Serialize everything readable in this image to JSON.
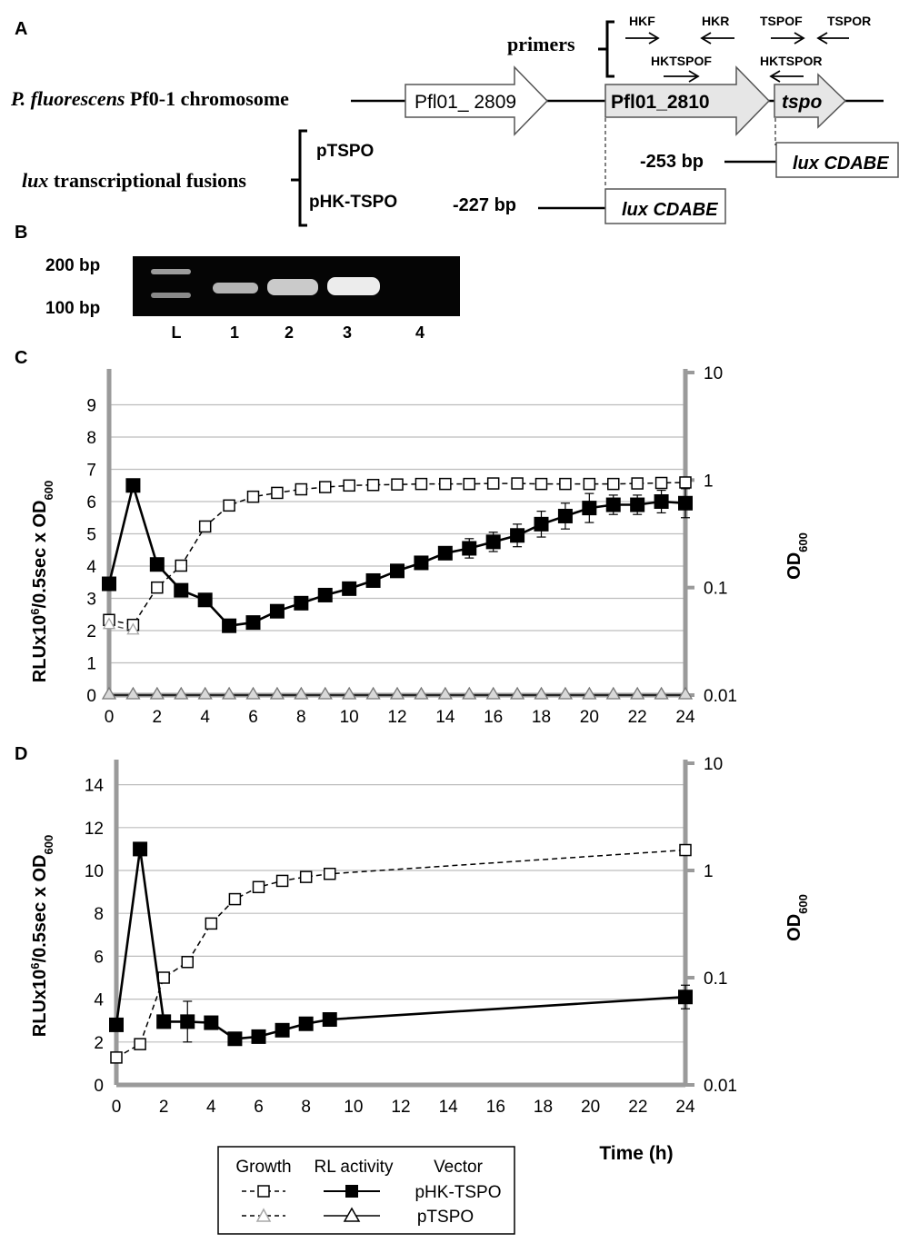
{
  "panel_a": {
    "label": "A",
    "primers_label": "primers",
    "primer_names": [
      "HKF",
      "HKR",
      "TSPOF",
      "TSPOR",
      "HKTSPOF",
      "HKTSPOR"
    ],
    "chromosome_species": "P. fluorescens",
    "chromosome_suffix": " Pf0-1 chromosome",
    "genes": [
      "Pfl01_ 2809",
      "Pfl01_2810",
      "tspo"
    ],
    "fusion_label_italic": "lux",
    "fusion_label_rest": " transcriptional fusions",
    "constructs": [
      "pTSPO",
      "pHK-TSPO"
    ],
    "distances": [
      "-253 bp",
      "-227 bp"
    ],
    "reporter": "lux CDABE"
  },
  "panel_b": {
    "label": "B",
    "ladder_marks": [
      "200 bp",
      "100 bp"
    ],
    "lanes": [
      "L",
      "1",
      "2",
      "3",
      "4"
    ]
  },
  "chart_data": [
    {
      "panel": "C",
      "type": "line",
      "xlabel": "",
      "ylabel_left": "RLUx10^6/0.5sec x OD600",
      "ylabel_right": "OD600",
      "x_ticks": [
        0,
        2,
        4,
        6,
        8,
        10,
        12,
        14,
        16,
        18,
        20,
        22,
        24
      ],
      "ylim_left": [
        0,
        10
      ],
      "y_ticks_left": [
        0,
        1,
        2,
        3,
        4,
        5,
        6,
        7,
        8,
        9
      ],
      "y_ticks_right": [
        "10",
        "1",
        "0.1",
        "0.01"
      ],
      "ylim_right_log": [
        0.01,
        10
      ],
      "series": [
        {
          "name": "Growth pHK-TSPO",
          "axis": "right",
          "style": "dashed-open-square",
          "x": [
            0,
            1,
            2,
            3,
            4,
            5,
            6,
            7,
            8,
            9,
            10,
            11,
            12,
            13,
            14,
            15,
            16,
            17,
            18,
            19,
            20,
            21,
            22,
            23,
            24
          ],
          "values": [
            0.05,
            0.045,
            0.1,
            0.16,
            0.37,
            0.58,
            0.7,
            0.76,
            0.82,
            0.86,
            0.89,
            0.9,
            0.91,
            0.92,
            0.92,
            0.92,
            0.93,
            0.93,
            0.92,
            0.92,
            0.92,
            0.92,
            0.93,
            0.94,
            0.95
          ]
        },
        {
          "name": "Growth pTSPO",
          "axis": "right",
          "style": "dashed-gray-triangle",
          "x": [
            0,
            1
          ],
          "values": [
            0.045,
            0.04
          ]
        },
        {
          "name": "RL activity pHK-TSPO",
          "axis": "left",
          "style": "solid-filled-square",
          "x": [
            0,
            1,
            2,
            3,
            4,
            5,
            6,
            7,
            8,
            9,
            10,
            11,
            12,
            13,
            14,
            15,
            16,
            17,
            18,
            19,
            20,
            21,
            22,
            23,
            24
          ],
          "values": [
            3.45,
            6.5,
            4.05,
            3.25,
            2.95,
            2.15,
            2.25,
            2.6,
            2.85,
            3.1,
            3.3,
            3.55,
            3.85,
            4.1,
            4.4,
            4.55,
            4.75,
            4.95,
            5.3,
            5.55,
            5.8,
            5.9,
            5.9,
            6.0,
            5.95
          ],
          "errors": [
            0,
            0,
            0,
            0,
            0,
            0,
            0,
            0.15,
            0.2,
            0.15,
            0.15,
            0.15,
            0.15,
            0.15,
            0.2,
            0.3,
            0.3,
            0.35,
            0.4,
            0.4,
            0.45,
            0.3,
            0.3,
            0.35,
            0.45
          ]
        },
        {
          "name": "RL activity pTSPO",
          "axis": "left",
          "style": "solid-open-triangle",
          "x": [
            0,
            1,
            2,
            3,
            4,
            5,
            6,
            7,
            8,
            9,
            10,
            11,
            12,
            13,
            14,
            15,
            16,
            17,
            18,
            19,
            20,
            21,
            22,
            23,
            24
          ],
          "values": [
            0,
            0,
            0,
            0,
            0,
            0,
            0,
            0,
            0,
            0,
            0,
            0,
            0,
            0,
            0,
            0,
            0,
            0,
            0,
            0,
            0,
            0,
            0,
            0,
            0
          ]
        }
      ]
    },
    {
      "panel": "D",
      "type": "line",
      "xlabel": "Time (h)",
      "ylabel_left": "RLUx10^6/0.5sec x OD600",
      "ylabel_right": "OD600",
      "x_ticks": [
        0,
        2,
        4,
        6,
        8,
        10,
        12,
        14,
        16,
        18,
        20,
        22,
        24
      ],
      "ylim_left": [
        0,
        15
      ],
      "y_ticks_left": [
        0,
        2,
        4,
        6,
        8,
        10,
        12,
        14
      ],
      "y_ticks_right": [
        "10",
        "1",
        "0.1",
        "0.01"
      ],
      "ylim_right_log": [
        0.01,
        10
      ],
      "series": [
        {
          "name": "Growth pHK-TSPO",
          "axis": "right",
          "style": "dashed-open-square",
          "x": [
            0,
            1,
            2,
            3,
            4,
            5,
            6,
            7,
            8,
            9,
            24
          ],
          "values": [
            0.018,
            0.024,
            0.1,
            0.14,
            0.32,
            0.54,
            0.7,
            0.8,
            0.87,
            0.93,
            1.55
          ]
        },
        {
          "name": "RL activity pHK-TSPO",
          "axis": "left",
          "style": "solid-filled-square",
          "x": [
            0,
            1,
            2,
            3,
            4,
            5,
            6,
            7,
            8,
            9,
            24
          ],
          "values": [
            2.8,
            11.0,
            2.95,
            2.95,
            2.9,
            2.15,
            2.25,
            2.55,
            2.85,
            3.05,
            4.1
          ],
          "errors": [
            0,
            0,
            0.3,
            0.95,
            0.3,
            0,
            0,
            0,
            0,
            0,
            0.55
          ]
        }
      ]
    }
  ],
  "axis_text": {
    "panel_c_label": "C",
    "panel_d_label": "D",
    "y_left_main": "RLUx10",
    "y_left_sup": "6",
    "y_left_rest": "/0.5sec x OD",
    "y_left_sub": "600",
    "y_right_main": "OD",
    "y_right_sub": "600",
    "x_axis_title": "Time (h)"
  },
  "legend": {
    "headers": [
      "Growth",
      "RL activity",
      "Vector"
    ],
    "rows": [
      "pHK-TSPO",
      "pTSPO"
    ]
  }
}
